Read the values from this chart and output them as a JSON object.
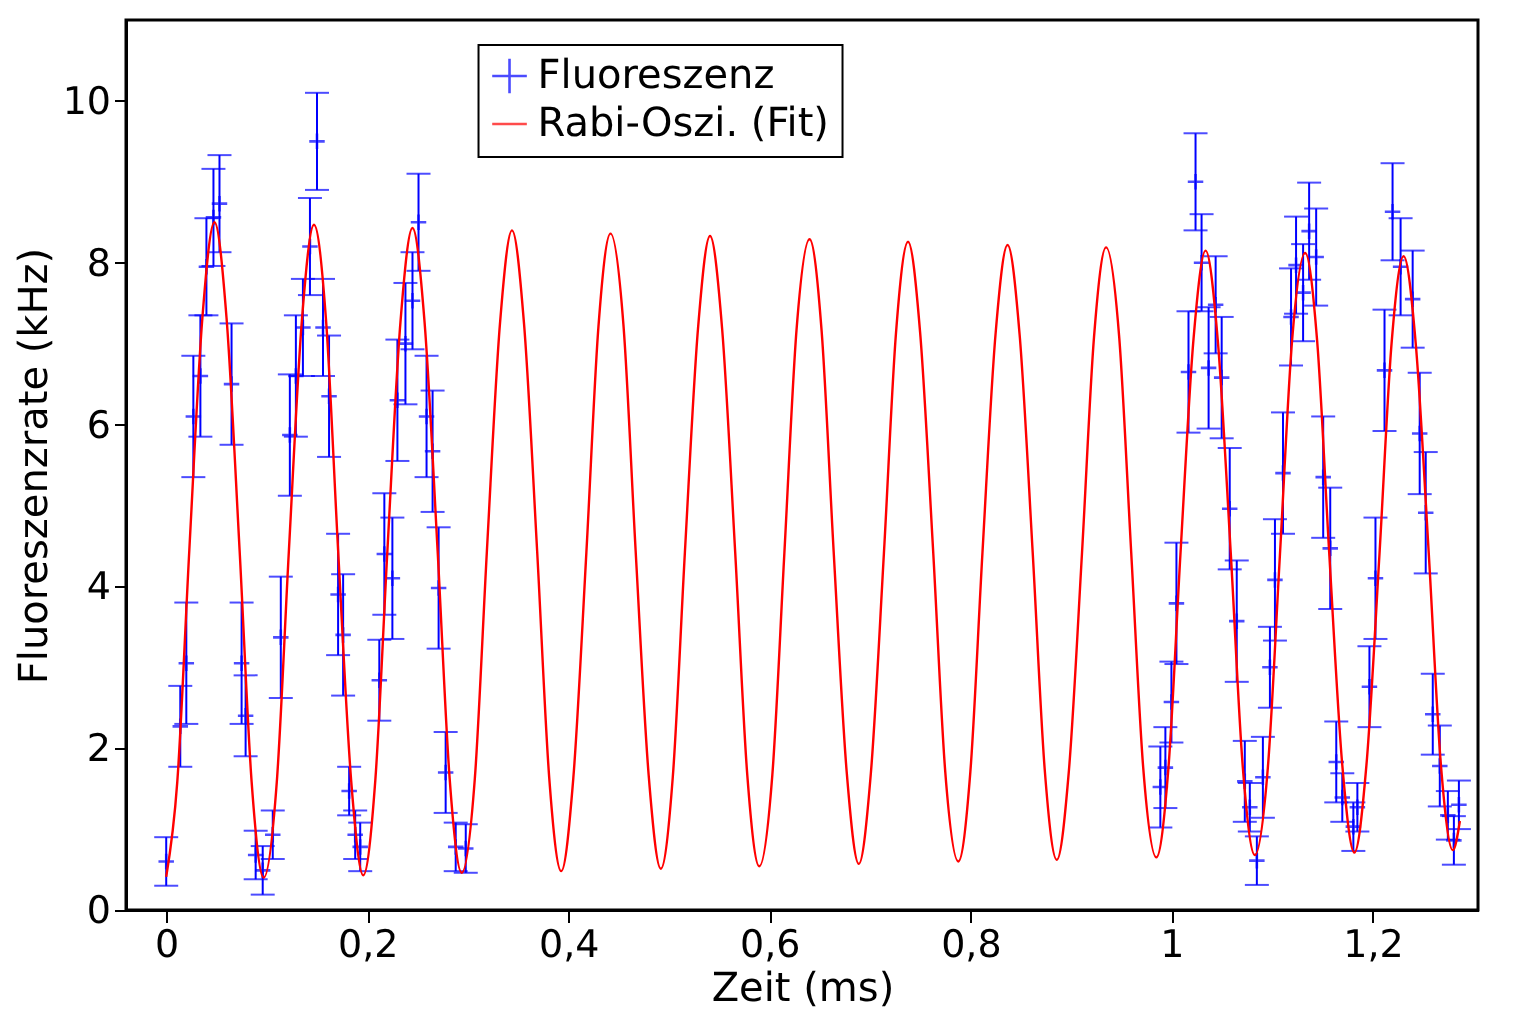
{
  "chart_data": {
    "type": "scatter",
    "xlabel": "Zeit (ms)",
    "ylabel": "Fluoreszenzrate (kHz)",
    "xlim": [
      -0.04,
      1.305
    ],
    "ylim": [
      0,
      11
    ],
    "xticks": [
      0,
      {
        "value": 0.2,
        "label": "0,2"
      },
      {
        "value": 0.4,
        "label": "0,4"
      },
      {
        "value": 0.6,
        "label": "0,6"
      },
      {
        "value": 0.8,
        "label": "0,8"
      },
      1,
      {
        "value": 1.2,
        "label": "1,2"
      }
    ],
    "yticks": [
      0,
      2,
      4,
      6,
      8,
      10
    ],
    "grid": false,
    "legend": "top",
    "series": [
      {
        "name": "Fluoreszenz",
        "type": "scatter",
        "marker": "cross",
        "color": "#0000ff",
        "x": [
          0.0,
          0.014,
          0.02,
          0.027,
          0.034,
          0.04,
          0.047,
          0.053,
          0.065,
          0.075,
          0.079,
          0.089,
          0.096,
          0.106,
          0.114,
          0.123,
          0.129,
          0.136,
          0.143,
          0.15,
          0.156,
          0.162,
          0.171,
          0.176,
          0.182,
          0.188,
          0.193,
          0.212,
          0.217,
          0.225,
          0.23,
          0.238,
          0.245,
          0.251,
          0.259,
          0.265,
          0.271,
          0.278,
          0.288,
          0.298,
          0.989,
          0.994,
          1.0,
          1.005,
          1.017,
          1.024,
          1.03,
          1.037,
          1.044,
          1.05,
          1.058,
          1.065,
          1.073,
          1.078,
          1.085,
          1.091,
          1.098,
          1.103,
          1.111,
          1.119,
          1.124,
          1.131,
          1.137,
          1.144,
          1.151,
          1.158,
          1.164,
          1.17,
          1.181,
          1.185,
          1.197,
          1.203,
          1.212,
          1.22,
          1.228,
          1.24,
          1.247,
          1.253,
          1.26,
          1.267,
          1.275,
          1.281,
          1.286
        ],
        "values": [
          0.6,
          2.27,
          3.05,
          6.1,
          6.6,
          7.95,
          8.56,
          8.73,
          6.5,
          3.05,
          2.4,
          0.68,
          0.49,
          0.93,
          3.37,
          5.87,
          6.6,
          7.2,
          8.2,
          9.5,
          7.2,
          6.35,
          3.9,
          3.4,
          1.47,
          0.93,
          0.78,
          2.84,
          4.4,
          4.1,
          6.3,
          7.0,
          7.53,
          8.5,
          6.1,
          5.67,
          3.98,
          1.7,
          0.78,
          0.76,
          1.52,
          1.76,
          2.57,
          3.79,
          6.65,
          9.0,
          8.0,
          6.7,
          7.48,
          6.58,
          4.96,
          3.57,
          1.59,
          1.27,
          0.61,
          1.64,
          3.0,
          4.08,
          5.4,
          7.33,
          7.97,
          7.63,
          8.39,
          8.07,
          5.35,
          4.47,
          1.83,
          1.39,
          1.03,
          1.27,
          2.76,
          4.1,
          6.67,
          8.63,
          7.95,
          7.55,
          5.89,
          4.91,
          2.42,
          1.78,
          1.17,
          0.86,
          1.3
        ],
        "errors": [
          0.3,
          0.5,
          0.75,
          0.75,
          0.75,
          0.6,
          0.6,
          0.6,
          0.75,
          0.75,
          0.5,
          0.3,
          0.3,
          0.3,
          0.75,
          0.75,
          0.75,
          0.6,
          0.6,
          0.6,
          0.6,
          0.75,
          0.75,
          0.75,
          0.3,
          0.3,
          0.3,
          0.5,
          0.75,
          0.75,
          0.75,
          0.75,
          0.6,
          0.6,
          0.75,
          0.75,
          0.75,
          0.5,
          0.3,
          0.3,
          0.5,
          0.5,
          0.5,
          0.75,
          0.75,
          0.6,
          0.6,
          0.75,
          0.6,
          0.75,
          0.75,
          0.75,
          0.5,
          0.3,
          0.3,
          0.5,
          0.5,
          0.75,
          0.75,
          0.6,
          0.6,
          0.6,
          0.6,
          0.6,
          0.75,
          0.75,
          0.5,
          0.3,
          0.3,
          0.3,
          0.5,
          0.75,
          0.75,
          0.6,
          0.6,
          0.6,
          0.75,
          0.75,
          0.5,
          0.5,
          0.3,
          0.3,
          0.3
        ]
      },
      {
        "name": "Rabi-Oszi. (Fit)",
        "type": "line",
        "line_style": "solid",
        "color": "#ff0000",
        "x": [
          0,
          0.011,
          0.023,
          0.036,
          0.048,
          0.06,
          0.073,
          0.085,
          0.097,
          0.11,
          0.122,
          0.135,
          0.147,
          0.159,
          0.171,
          0.184,
          0.196,
          0.208,
          0.22,
          0.233,
          0.245,
          0.257,
          0.27,
          0.282,
          0.294,
          0.307,
          0.319,
          0.332,
          0.344,
          0.356,
          0.369,
          0.381,
          0.393,
          0.405,
          0.418,
          0.43,
          0.442,
          0.455,
          0.467,
          0.48,
          0.492,
          0.504,
          0.516,
          0.529,
          0.541,
          0.553,
          0.566,
          0.578,
          0.59,
          0.603,
          0.615,
          0.627,
          0.64,
          0.652,
          0.664,
          0.677,
          0.689,
          0.701,
          0.714,
          0.726,
          0.738,
          0.75,
          0.763,
          0.775,
          0.788,
          0.8,
          0.812,
          0.825,
          0.837,
          0.849,
          0.862,
          0.874,
          0.886,
          0.898,
          0.911,
          0.923,
          0.935,
          0.948,
          0.96,
          0.972,
          0.985,
          0.997,
          1.009,
          1.022,
          1.034,
          1.046,
          1.059,
          1.071,
          1.083,
          1.096,
          1.108,
          1.12,
          1.133,
          1.145,
          1.157,
          1.17,
          1.182,
          1.194,
          1.207,
          1.219,
          1.231,
          1.243,
          1.256,
          1.268,
          1.28,
          1.287
        ],
        "values": [
          0.41,
          1.58,
          4.45,
          7.32,
          8.5,
          7.32,
          4.45,
          1.58,
          0.4,
          1.58,
          4.43,
          7.29,
          8.47,
          7.29,
          4.45,
          1.6,
          0.43,
          1.6,
          4.43,
          7.26,
          8.43,
          7.27,
          4.44,
          1.62,
          0.46,
          1.62,
          4.43,
          7.24,
          8.4,
          7.24,
          4.44,
          1.64,
          0.48,
          1.63,
          4.42,
          7.21,
          8.36,
          7.21,
          4.44,
          1.66,
          0.51,
          1.65,
          4.42,
          7.18,
          8.33,
          7.19,
          4.43,
          1.68,
          0.54,
          1.67,
          4.42,
          7.16,
          8.29,
          7.16,
          4.43,
          1.7,
          0.57,
          1.69,
          4.41,
          7.13,
          8.26,
          7.14,
          4.43,
          1.71,
          0.6,
          1.71,
          4.41,
          7.11,
          8.22,
          7.11,
          4.42,
          1.73,
          0.62,
          1.72,
          4.4,
          7.08,
          8.19,
          7.09,
          4.42,
          1.75,
          0.65,
          1.75,
          4.4,
          7.06,
          8.15,
          7.06,
          4.42,
          1.77,
          0.68,
          1.77,
          4.4,
          7.03,
          8.12,
          7.03,
          4.41,
          1.79,
          0.71,
          1.79,
          4.4,
          7.0,
          8.08,
          7.01,
          4.41,
          1.81,
          0.74,
          1.1
        ]
      }
    ]
  }
}
